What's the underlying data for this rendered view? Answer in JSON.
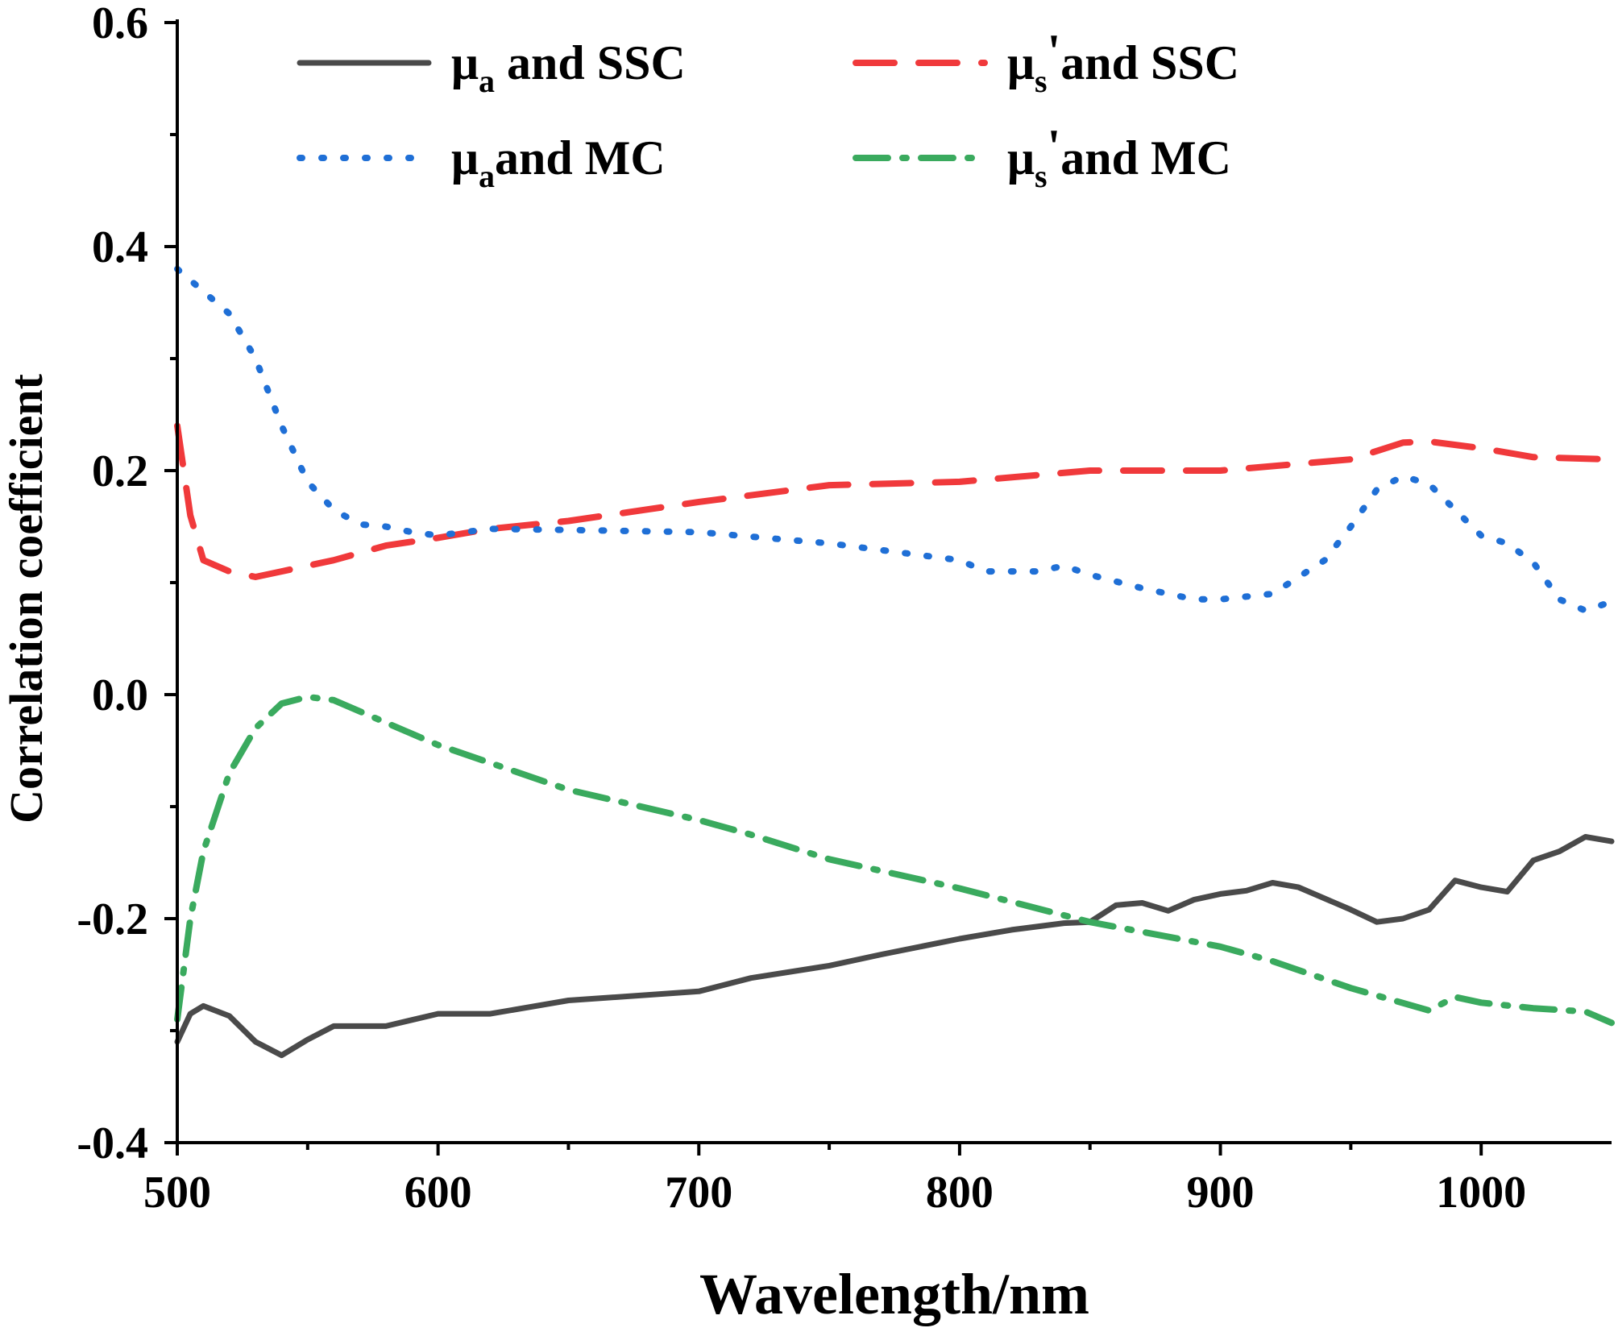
{
  "chart_data": {
    "type": "line",
    "xlabel": "Wavelength/nm",
    "ylabel": "Correlation coefficient",
    "xlim": [
      500,
      1050
    ],
    "ylim": [
      -0.4,
      0.6
    ],
    "x_ticks": [
      500,
      600,
      700,
      800,
      900,
      1000
    ],
    "y_ticks": [
      -0.4,
      -0.2,
      0.0,
      0.2,
      0.4,
      0.6
    ],
    "x_tick_labels": [
      "500",
      "600",
      "700",
      "800",
      "900",
      "1000"
    ],
    "y_tick_labels": [
      "-0.4",
      "-0.2",
      "0.0",
      "0.2",
      "0.4",
      "0.6"
    ],
    "grid": false,
    "legend_position": "top",
    "series": [
      {
        "name": "μa and SSC",
        "legend": {
          "base": "μ",
          "sub": "a",
          "prime": "",
          "rest": " and SSC"
        },
        "color": "#4a4a4a",
        "style": "solid",
        "x": [
          500,
          505,
          510,
          520,
          530,
          540,
          550,
          560,
          580,
          600,
          620,
          650,
          700,
          720,
          750,
          770,
          800,
          820,
          840,
          850,
          860,
          870,
          880,
          890,
          900,
          910,
          920,
          930,
          950,
          960,
          970,
          980,
          990,
          1000,
          1010,
          1020,
          1030,
          1040,
          1050
        ],
        "values": [
          -0.31,
          -0.285,
          -0.278,
          -0.287,
          -0.31,
          -0.322,
          -0.308,
          -0.296,
          -0.296,
          -0.285,
          -0.285,
          -0.273,
          -0.265,
          -0.253,
          -0.242,
          -0.232,
          -0.218,
          -0.21,
          -0.204,
          -0.203,
          -0.188,
          -0.186,
          -0.193,
          -0.183,
          -0.178,
          -0.175,
          -0.168,
          -0.172,
          -0.192,
          -0.203,
          -0.2,
          -0.192,
          -0.166,
          -0.172,
          -0.176,
          -0.148,
          -0.14,
          -0.127,
          -0.131
        ]
      },
      {
        "name": "μs'and SSC",
        "legend": {
          "base": "μ",
          "sub": "s",
          "prime": "'",
          "rest": "and SSC"
        },
        "color": "#f0393b",
        "style": "dashed",
        "x": [
          500,
          505,
          510,
          520,
          530,
          540,
          550,
          560,
          580,
          600,
          620,
          650,
          700,
          750,
          800,
          850,
          875,
          900,
          950,
          970,
          980,
          1000,
          1020,
          1050
        ],
        "values": [
          0.24,
          0.16,
          0.12,
          0.11,
          0.105,
          0.11,
          0.115,
          0.12,
          0.133,
          0.14,
          0.148,
          0.155,
          0.172,
          0.187,
          0.19,
          0.2,
          0.2,
          0.2,
          0.21,
          0.225,
          0.226,
          0.22,
          0.212,
          0.21
        ]
      },
      {
        "name": "μaand MC",
        "legend": {
          "base": "μ",
          "sub": "a",
          "prime": "",
          "rest": "and MC"
        },
        "color": "#1f6fd6",
        "style": "dotted",
        "x": [
          500,
          510,
          520,
          530,
          540,
          550,
          560,
          570,
          580,
          590,
          600,
          620,
          650,
          700,
          750,
          800,
          810,
          830,
          840,
          850,
          870,
          890,
          900,
          920,
          940,
          950,
          960,
          970,
          980,
          990,
          1000,
          1010,
          1020,
          1030,
          1040,
          1050
        ],
        "values": [
          0.38,
          0.36,
          0.34,
          0.3,
          0.24,
          0.19,
          0.165,
          0.152,
          0.15,
          0.145,
          0.142,
          0.148,
          0.147,
          0.145,
          0.135,
          0.12,
          0.11,
          0.11,
          0.115,
          0.107,
          0.095,
          0.085,
          0.085,
          0.09,
          0.12,
          0.15,
          0.183,
          0.195,
          0.188,
          0.165,
          0.142,
          0.135,
          0.118,
          0.085,
          0.075,
          0.083
        ]
      },
      {
        "name": "μs'and MC",
        "legend": {
          "base": "μ",
          "sub": "s",
          "prime": "'",
          "rest": "and MC"
        },
        "color": "#3aaa5e",
        "style": "dashdot",
        "x": [
          500,
          505,
          510,
          520,
          530,
          540,
          550,
          560,
          580,
          600,
          650,
          700,
          720,
          750,
          800,
          850,
          900,
          920,
          950,
          980,
          990,
          1000,
          1020,
          1040,
          1050
        ],
        "values": [
          -0.29,
          -0.2,
          -0.14,
          -0.07,
          -0.03,
          -0.008,
          -0.002,
          -0.005,
          -0.025,
          -0.045,
          -0.085,
          -0.112,
          -0.125,
          -0.147,
          -0.173,
          -0.203,
          -0.225,
          -0.238,
          -0.262,
          -0.282,
          -0.27,
          -0.275,
          -0.28,
          -0.283,
          -0.293
        ]
      }
    ]
  }
}
